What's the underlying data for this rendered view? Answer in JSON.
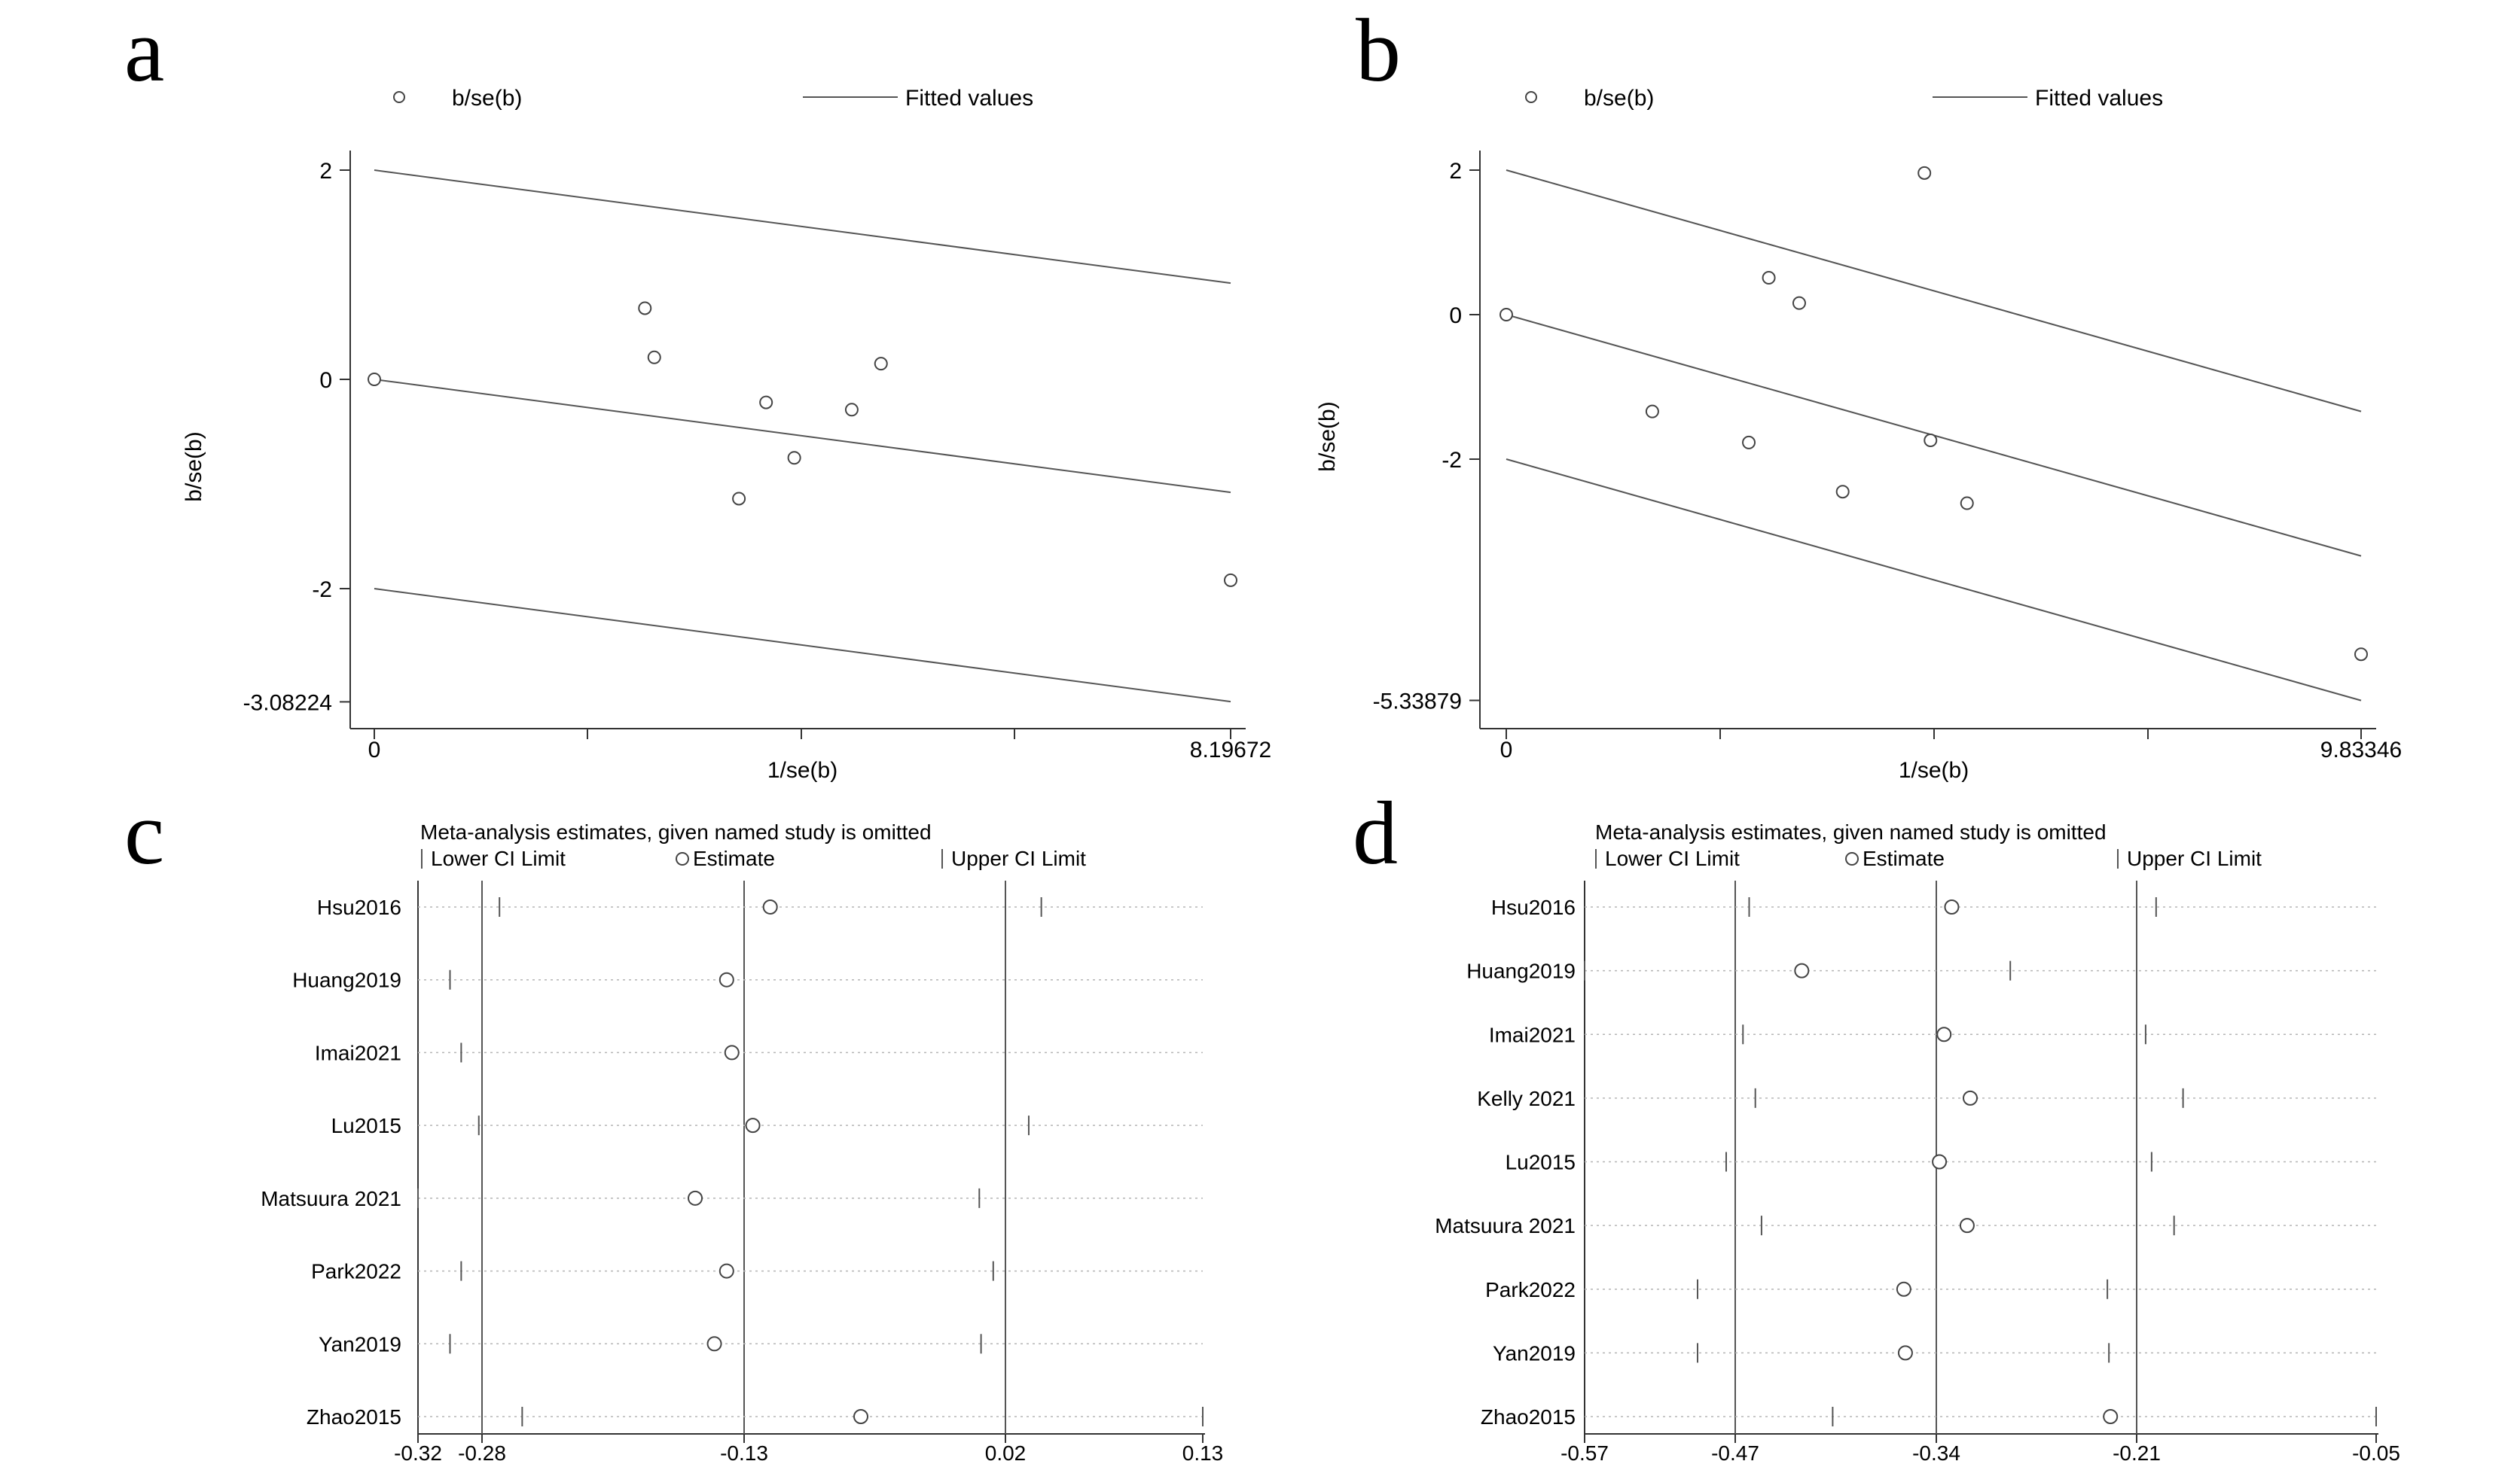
{
  "chart_data": [
    {
      "panel": "a",
      "type": "scatter",
      "legend": {
        "marker_label": "b/se(b)",
        "line_label": "Fitted values"
      },
      "xlabel": "1/se(b)",
      "ylabel": "b/se(b)",
      "x_ticks": [
        "0",
        "8.19672"
      ],
      "y_ticks": [
        "2",
        "0",
        "-2",
        "-3.08224"
      ],
      "xlim": [
        0,
        8.19672
      ],
      "ylim": [
        -3.08224,
        2.2
      ],
      "points": [
        {
          "x": 0.0,
          "y": 0.0
        },
        {
          "x": 2.59,
          "y": 0.68
        },
        {
          "x": 2.68,
          "y": 0.21
        },
        {
          "x": 3.49,
          "y": -1.14
        },
        {
          "x": 3.75,
          "y": -0.22
        },
        {
          "x": 4.02,
          "y": -0.75
        },
        {
          "x": 4.57,
          "y": -0.29
        },
        {
          "x": 4.85,
          "y": 0.15
        },
        {
          "x": 8.19672,
          "y": -1.92
        }
      ],
      "fitted_lines": [
        {
          "x": [
            0,
            8.19672
          ],
          "y": [
            2.0,
            0.92
          ]
        },
        {
          "x": [
            0,
            8.19672
          ],
          "y": [
            0.0,
            -1.08
          ]
        },
        {
          "x": [
            0,
            8.19672
          ],
          "y": [
            -2.0,
            -3.08
          ]
        }
      ]
    },
    {
      "panel": "b",
      "type": "scatter",
      "legend": {
        "marker_label": "b/se(b)",
        "line_label": "Fitted values"
      },
      "xlabel": "1/se(b)",
      "ylabel": "b/se(b)",
      "x_ticks": [
        "0",
        "9.83346"
      ],
      "y_ticks": [
        "2",
        "0",
        "-2",
        "-5.33879"
      ],
      "xlim": [
        0,
        9.83346
      ],
      "ylim": [
        -5.33879,
        2.2
      ],
      "points": [
        {
          "x": 0.0,
          "y": 0.0
        },
        {
          "x": 1.68,
          "y": -1.34
        },
        {
          "x": 2.79,
          "y": -1.77
        },
        {
          "x": 3.02,
          "y": 0.51
        },
        {
          "x": 3.37,
          "y": 0.16
        },
        {
          "x": 3.87,
          "y": -2.45
        },
        {
          "x": 4.81,
          "y": 1.96
        },
        {
          "x": 4.88,
          "y": -1.74
        },
        {
          "x": 5.3,
          "y": -2.61
        },
        {
          "x": 9.83346,
          "y": -4.7
        }
      ],
      "fitted_lines": [
        {
          "x": [
            0,
            9.83346
          ],
          "y": [
            2.0,
            -1.34
          ]
        },
        {
          "x": [
            0,
            9.83346
          ],
          "y": [
            0.0,
            -3.34
          ]
        },
        {
          "x": [
            0,
            9.83346
          ],
          "y": [
            -2.0,
            -5.34
          ]
        }
      ]
    },
    {
      "panel": "c",
      "type": "forest",
      "title": "Meta-analysis estimates, given named study is omitted",
      "legend": {
        "lower": "Lower CI Limit",
        "estimate": "Estimate",
        "upper": "Upper CI Limit"
      },
      "x_ticks": [
        "-0.32",
        "-0.28",
        "-0.13",
        "0.02",
        "0.13"
      ],
      "xlim": [
        -0.32,
        0.13
      ],
      "overall": {
        "lower": -0.28,
        "estimate": -0.13,
        "upper": 0.02
      },
      "studies": [
        {
          "name": "Hsu2016",
          "lower": -0.27,
          "estimate": -0.115,
          "upper": 0.04
        },
        {
          "name": "Huang2019",
          "lower": -0.3,
          "estimate": -0.14,
          "upper": 0.02
        },
        {
          "name": "Imai2021",
          "lower": -0.293,
          "estimate": -0.137,
          "upper": 0.02
        },
        {
          "name": "Lu2015",
          "lower": -0.282,
          "estimate": -0.125,
          "upper": 0.033
        },
        {
          "name": "Matsuura 2021",
          "lower": -0.32,
          "estimate": -0.158,
          "upper": 0.005
        },
        {
          "name": "Park2022",
          "lower": -0.293,
          "estimate": -0.14,
          "upper": 0.013
        },
        {
          "name": "Yan2019",
          "lower": -0.3,
          "estimate": -0.147,
          "upper": 0.006
        },
        {
          "name": "Zhao2015",
          "lower": -0.257,
          "estimate": -0.063,
          "upper": 0.13
        }
      ]
    },
    {
      "panel": "d",
      "type": "forest",
      "title": "Meta-analysis estimates, given named study is omitted",
      "legend": {
        "lower": "Lower CI Limit",
        "estimate": "Estimate",
        "upper": "Upper CI Limit"
      },
      "x_ticks": [
        "-0.57",
        "-0.47",
        "-0.34",
        "-0.21",
        "-0.05"
      ],
      "xlim": [
        -0.57,
        -0.05
      ],
      "overall": {
        "lower": -0.47,
        "estimate": -0.34,
        "upper": -0.21
      },
      "studies": [
        {
          "name": "Hsu2016",
          "lower": -0.461,
          "estimate": -0.33,
          "upper": -0.197
        },
        {
          "name": "Huang2019",
          "lower": -0.57,
          "estimate": -0.427,
          "upper": -0.292
        },
        {
          "name": "Imai2021",
          "lower": -0.465,
          "estimate": -0.335,
          "upper": -0.204
        },
        {
          "name": "Kelly 2021",
          "lower": -0.457,
          "estimate": -0.318,
          "upper": -0.179
        },
        {
          "name": "Lu2015",
          "lower": -0.476,
          "estimate": -0.338,
          "upper": -0.2
        },
        {
          "name": "Matsuura 2021",
          "lower": -0.453,
          "estimate": -0.32,
          "upper": -0.185
        },
        {
          "name": "Park2022",
          "lower": -0.495,
          "estimate": -0.361,
          "upper": -0.229
        },
        {
          "name": "Yan2019",
          "lower": -0.495,
          "estimate": -0.36,
          "upper": -0.228
        },
        {
          "name": "Zhao2015",
          "lower": -0.407,
          "estimate": -0.227,
          "upper": -0.05
        }
      ]
    }
  ],
  "panels": [
    "a",
    "b",
    "c",
    "d"
  ]
}
